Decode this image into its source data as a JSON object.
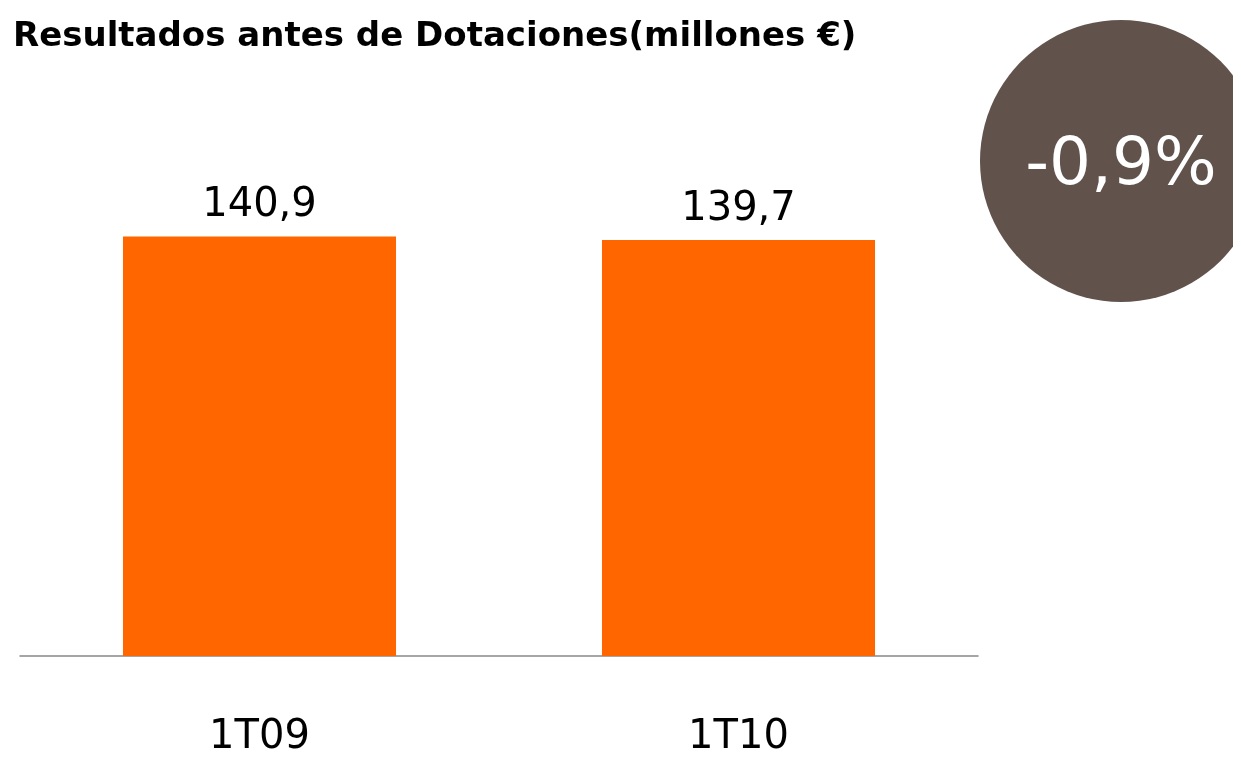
{
  "chart_data": {
    "type": "bar",
    "title": "Resultados antes de Dotaciones(millones €)",
    "categories": [
      "1T09",
      "1T10"
    ],
    "values": [
      140.9,
      139.7
    ],
    "value_labels": [
      "140,9",
      "139,7"
    ],
    "color": "#ff6600",
    "annotations": [
      "-0,9%"
    ],
    "grid": false
  }
}
